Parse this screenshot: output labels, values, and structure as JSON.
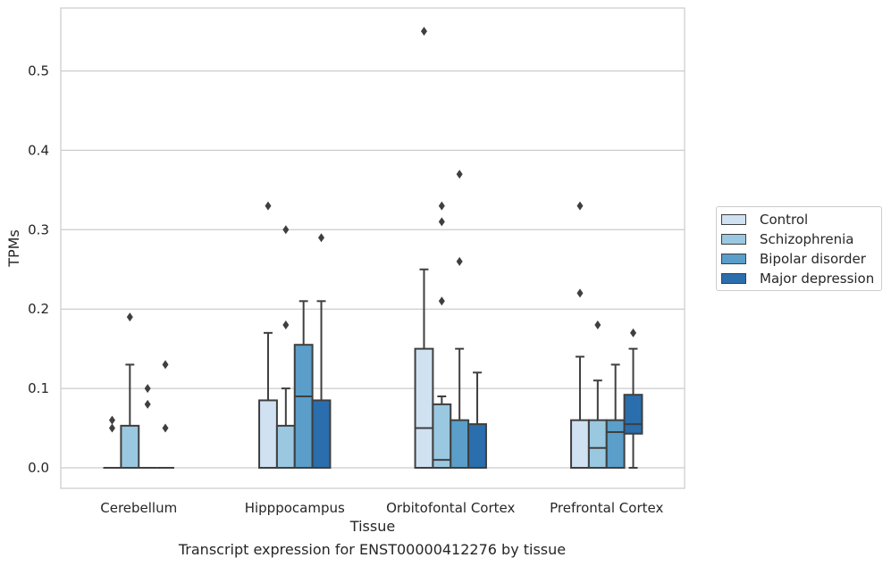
{
  "chart_data": {
    "type": "box",
    "xlabel": "Tissue",
    "ylabel": "TPMs",
    "caption": "Transcript expression for ENST00000412276 by tissue",
    "ylim": [
      -0.027,
      0.58
    ],
    "yticks": [
      0.0,
      0.1,
      0.2,
      0.3,
      0.4,
      0.5
    ],
    "ytick_labels": [
      "0.0",
      "0.1",
      "0.2",
      "0.3",
      "0.4",
      "0.5"
    ],
    "grid": true,
    "legend_position": "outside-right",
    "categories": [
      "Cerebellum",
      "Hipppocampus",
      "Orbitofontal Cortex",
      "Prefrontal Cortex"
    ],
    "series": [
      {
        "name": "Control",
        "color": "#d0e1f2",
        "boxes": [
          {
            "q1": 0.0,
            "median": 0.0,
            "q3": 0.0,
            "whislo": 0.0,
            "whishi": 0.0,
            "fliers": [
              0.05,
              0.06
            ]
          },
          {
            "q1": 0.0,
            "median": 0.0,
            "q3": 0.085,
            "whislo": 0.0,
            "whishi": 0.17,
            "fliers": [
              0.33
            ]
          },
          {
            "q1": 0.0,
            "median": 0.05,
            "q3": 0.15,
            "whislo": 0.0,
            "whishi": 0.25,
            "fliers": [
              0.55
            ]
          },
          {
            "q1": 0.0,
            "median": 0.0,
            "q3": 0.06,
            "whislo": 0.0,
            "whishi": 0.14,
            "fliers": [
              0.22,
              0.33
            ]
          }
        ]
      },
      {
        "name": "Schizophrenia",
        "color": "#9ac8e0",
        "boxes": [
          {
            "q1": 0.0,
            "median": 0.0,
            "q3": 0.053,
            "whislo": 0.0,
            "whishi": 0.13,
            "fliers": [
              0.19
            ]
          },
          {
            "q1": 0.0,
            "median": 0.0,
            "q3": 0.053,
            "whislo": 0.0,
            "whishi": 0.1,
            "fliers": [
              0.18,
              0.3
            ]
          },
          {
            "q1": 0.0,
            "median": 0.01,
            "q3": 0.08,
            "whislo": 0.0,
            "whishi": 0.09,
            "fliers": [
              0.21,
              0.31,
              0.33
            ]
          },
          {
            "q1": 0.0,
            "median": 0.025,
            "q3": 0.06,
            "whislo": 0.0,
            "whishi": 0.11,
            "fliers": [
              0.18
            ]
          }
        ]
      },
      {
        "name": "Bipolar disorder",
        "color": "#5a9ec9",
        "boxes": [
          {
            "q1": 0.0,
            "median": 0.0,
            "q3": 0.0,
            "whislo": 0.0,
            "whishi": 0.0,
            "fliers": [
              0.08,
              0.1
            ]
          },
          {
            "q1": 0.0,
            "median": 0.09,
            "q3": 0.155,
            "whislo": 0.0,
            "whishi": 0.21,
            "fliers": []
          },
          {
            "q1": 0.0,
            "median": 0.0,
            "q3": 0.06,
            "whislo": 0.0,
            "whishi": 0.15,
            "fliers": [
              0.26,
              0.37
            ]
          },
          {
            "q1": 0.0,
            "median": 0.045,
            "q3": 0.06,
            "whislo": 0.0,
            "whishi": 0.13,
            "fliers": []
          }
        ]
      },
      {
        "name": "Major depression",
        "color": "#2a6ead",
        "boxes": [
          {
            "q1": 0.0,
            "median": 0.0,
            "q3": 0.0,
            "whislo": 0.0,
            "whishi": 0.0,
            "fliers": [
              0.05,
              0.13
            ]
          },
          {
            "q1": 0.0,
            "median": 0.0,
            "q3": 0.085,
            "whislo": 0.0,
            "whishi": 0.21,
            "fliers": [
              0.29
            ]
          },
          {
            "q1": 0.0,
            "median": 0.0,
            "q3": 0.055,
            "whislo": 0.0,
            "whishi": 0.12,
            "fliers": []
          },
          {
            "q1": 0.043,
            "median": 0.055,
            "q3": 0.092,
            "whislo": 0.0,
            "whishi": 0.15,
            "fliers": [
              0.17
            ]
          }
        ]
      }
    ]
  }
}
